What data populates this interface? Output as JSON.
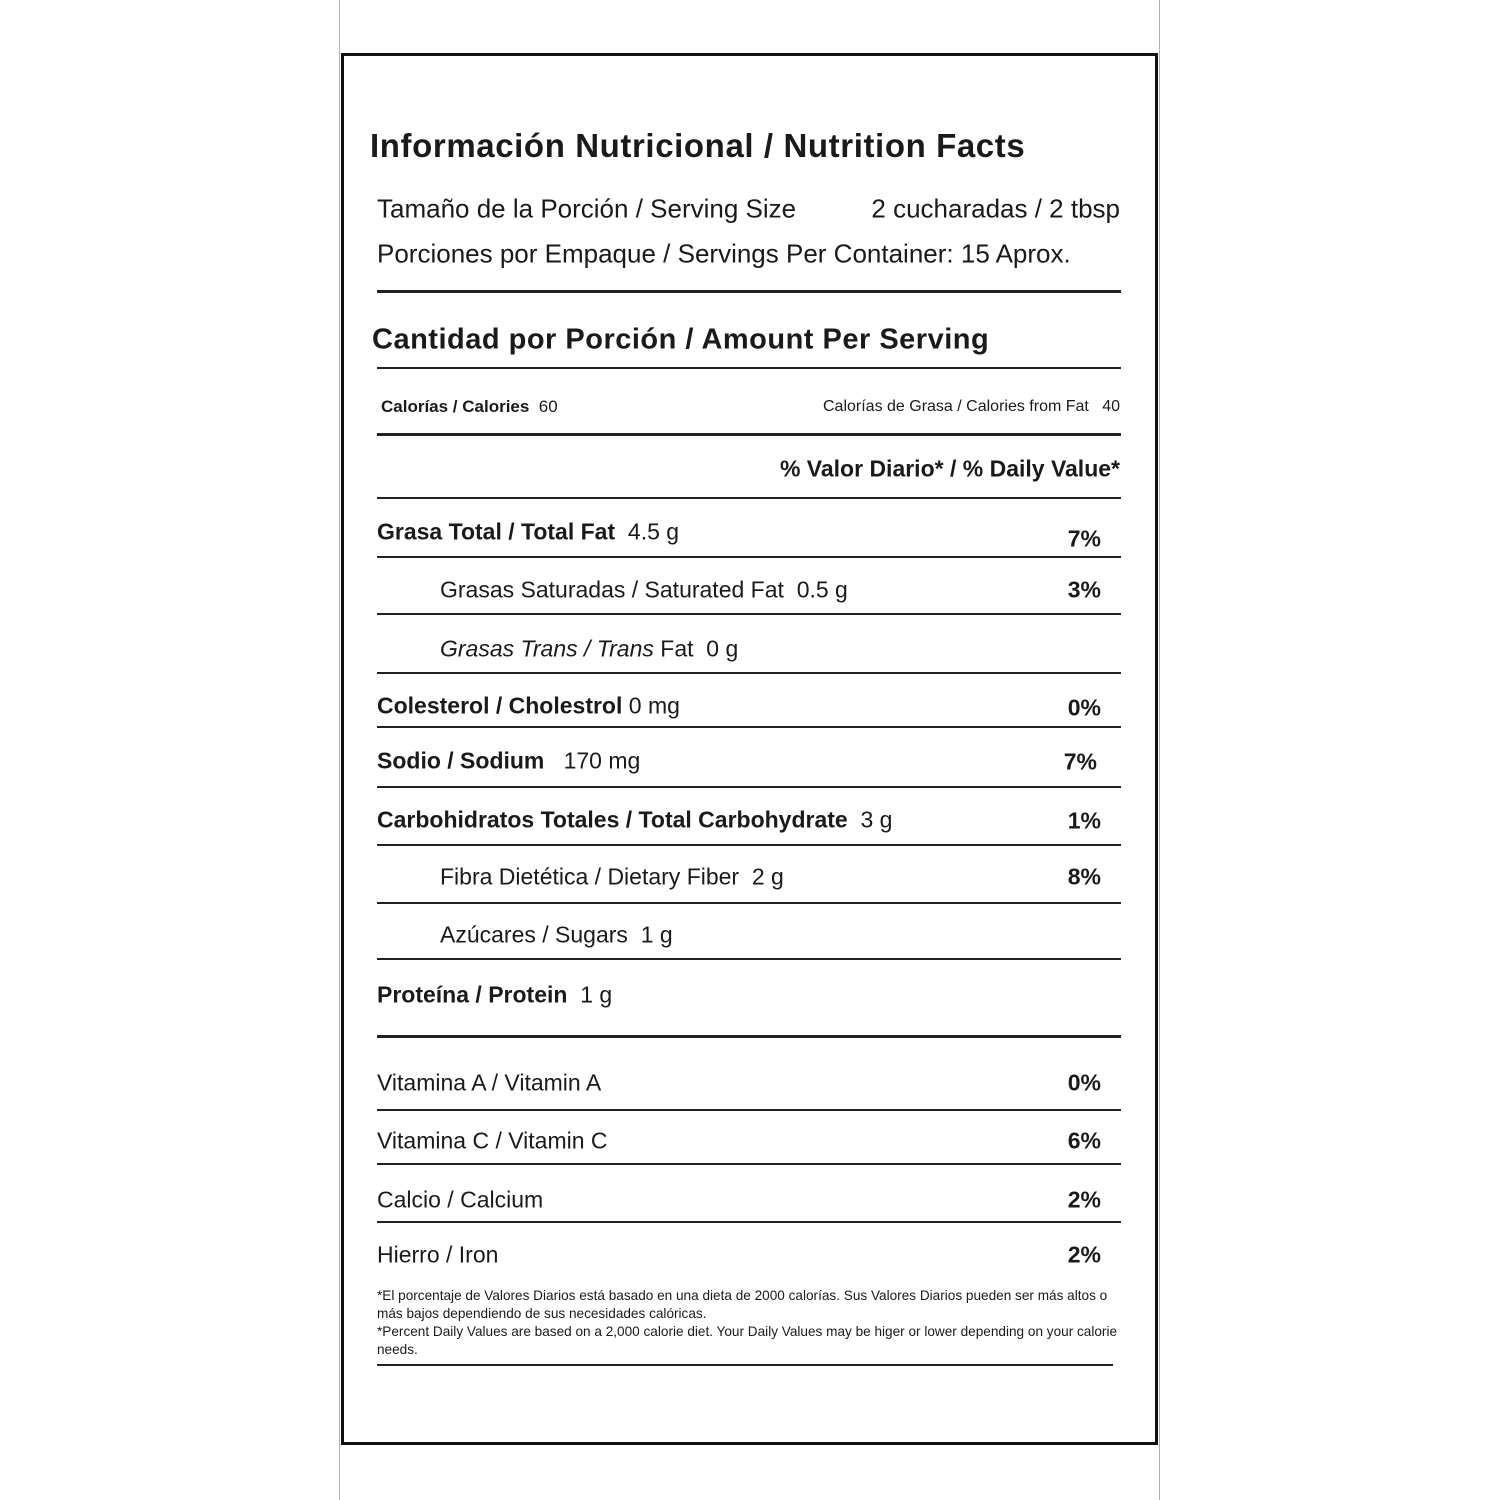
{
  "title": "Información Nutricional / Nutrition Facts",
  "serving_size": {
    "label": "Tamaño de la Porción / Serving Size",
    "value": "2 cucharadas / 2 tbsp"
  },
  "servings_per_container": "Porciones por Empaque / Servings Per Container: 15 Aprox.",
  "amount_per_serving": "Cantidad por Porción / Amount Per Serving",
  "calories": {
    "label": "Calorías / Calories",
    "value": "60",
    "fat_label": "Calorías de Grasa / Calories from Fat",
    "fat_value": "40"
  },
  "daily_value_header": "% Valor Diario* / % Daily Value*",
  "nutrients": [
    {
      "label": "Grasa Total / Total Fat",
      "amount": "4.5 g",
      "pct": "7%"
    },
    {
      "label": "Grasas Saturadas / Saturated Fat",
      "amount": "0.5 g",
      "pct": "3%"
    },
    {
      "label_es": "Grasas Trans /",
      "label_en_italic": "Trans",
      "label_rest": "Fat",
      "amount": "0 g"
    },
    {
      "label": "Colesterol / Cholestrol",
      "amount": "0 mg",
      "pct": "0%"
    },
    {
      "label": "Sodio / Sodium",
      "amount": "170 mg",
      "pct": "7%"
    },
    {
      "label": "Carbohidratos Totales / Total Carbohydrate",
      "amount": "3 g",
      "pct": "1%"
    },
    {
      "label": "Fibra Dietética / Dietary Fiber",
      "amount": "2 g",
      "pct": "8%"
    },
    {
      "label": "Azúcares / Sugars",
      "amount": "1 g"
    },
    {
      "label": "Proteína / Protein",
      "amount": "1 g"
    }
  ],
  "vitamins": [
    {
      "label": "Vitamina A / Vitamin A",
      "pct": "0%"
    },
    {
      "label": "Vitamina C / Vitamin C",
      "pct": "6%"
    },
    {
      "label": "Calcio / Calcium",
      "pct": "2%"
    },
    {
      "label": "Hierro / Iron",
      "pct": "2%"
    }
  ],
  "footnote_es": "*El porcentaje de Valores Diarios está basado en una dieta de 2000 calorías. Sus Valores Diarios pueden ser más altos o más bajos dependiendo de sus necesidades calóricas.",
  "footnote_en": "*Percent Daily Values are based on a 2,000 calorie diet. Your Daily Values may be higer or lower depending on your calorie needs."
}
